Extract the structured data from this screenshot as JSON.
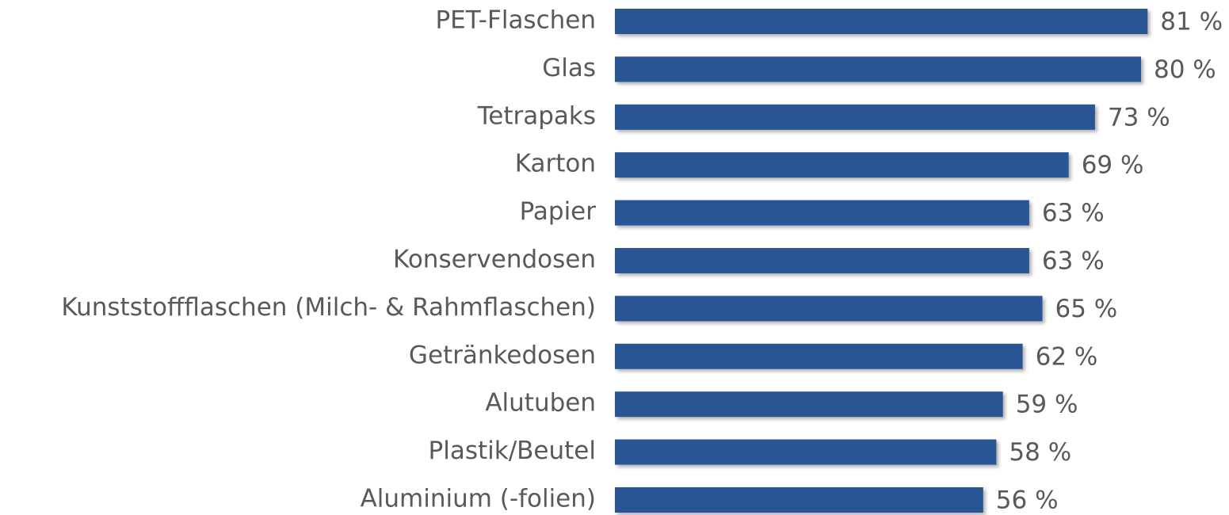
{
  "chart_data": {
    "type": "bar",
    "orientation": "horizontal",
    "color": "#2a5594",
    "categories": [
      "PET-Flaschen",
      "Glas",
      "Tetrapaks",
      "Karton",
      "Papier",
      "Konservendosen",
      "Kunststoffflaschen (Milch- & Rahmflaschen)",
      "Getränkedosen",
      "Alutuben",
      "Plastik/Beutel",
      "Aluminium (-folien)"
    ],
    "values": [
      81,
      80,
      73,
      69,
      63,
      63,
      65,
      62,
      59,
      58,
      56
    ],
    "value_labels": [
      "81 %",
      "80 %",
      "73 %",
      "69 %",
      "63 %",
      "63 %",
      "65 %",
      "62 %",
      "59 %",
      "58 %",
      "56 %"
    ]
  }
}
